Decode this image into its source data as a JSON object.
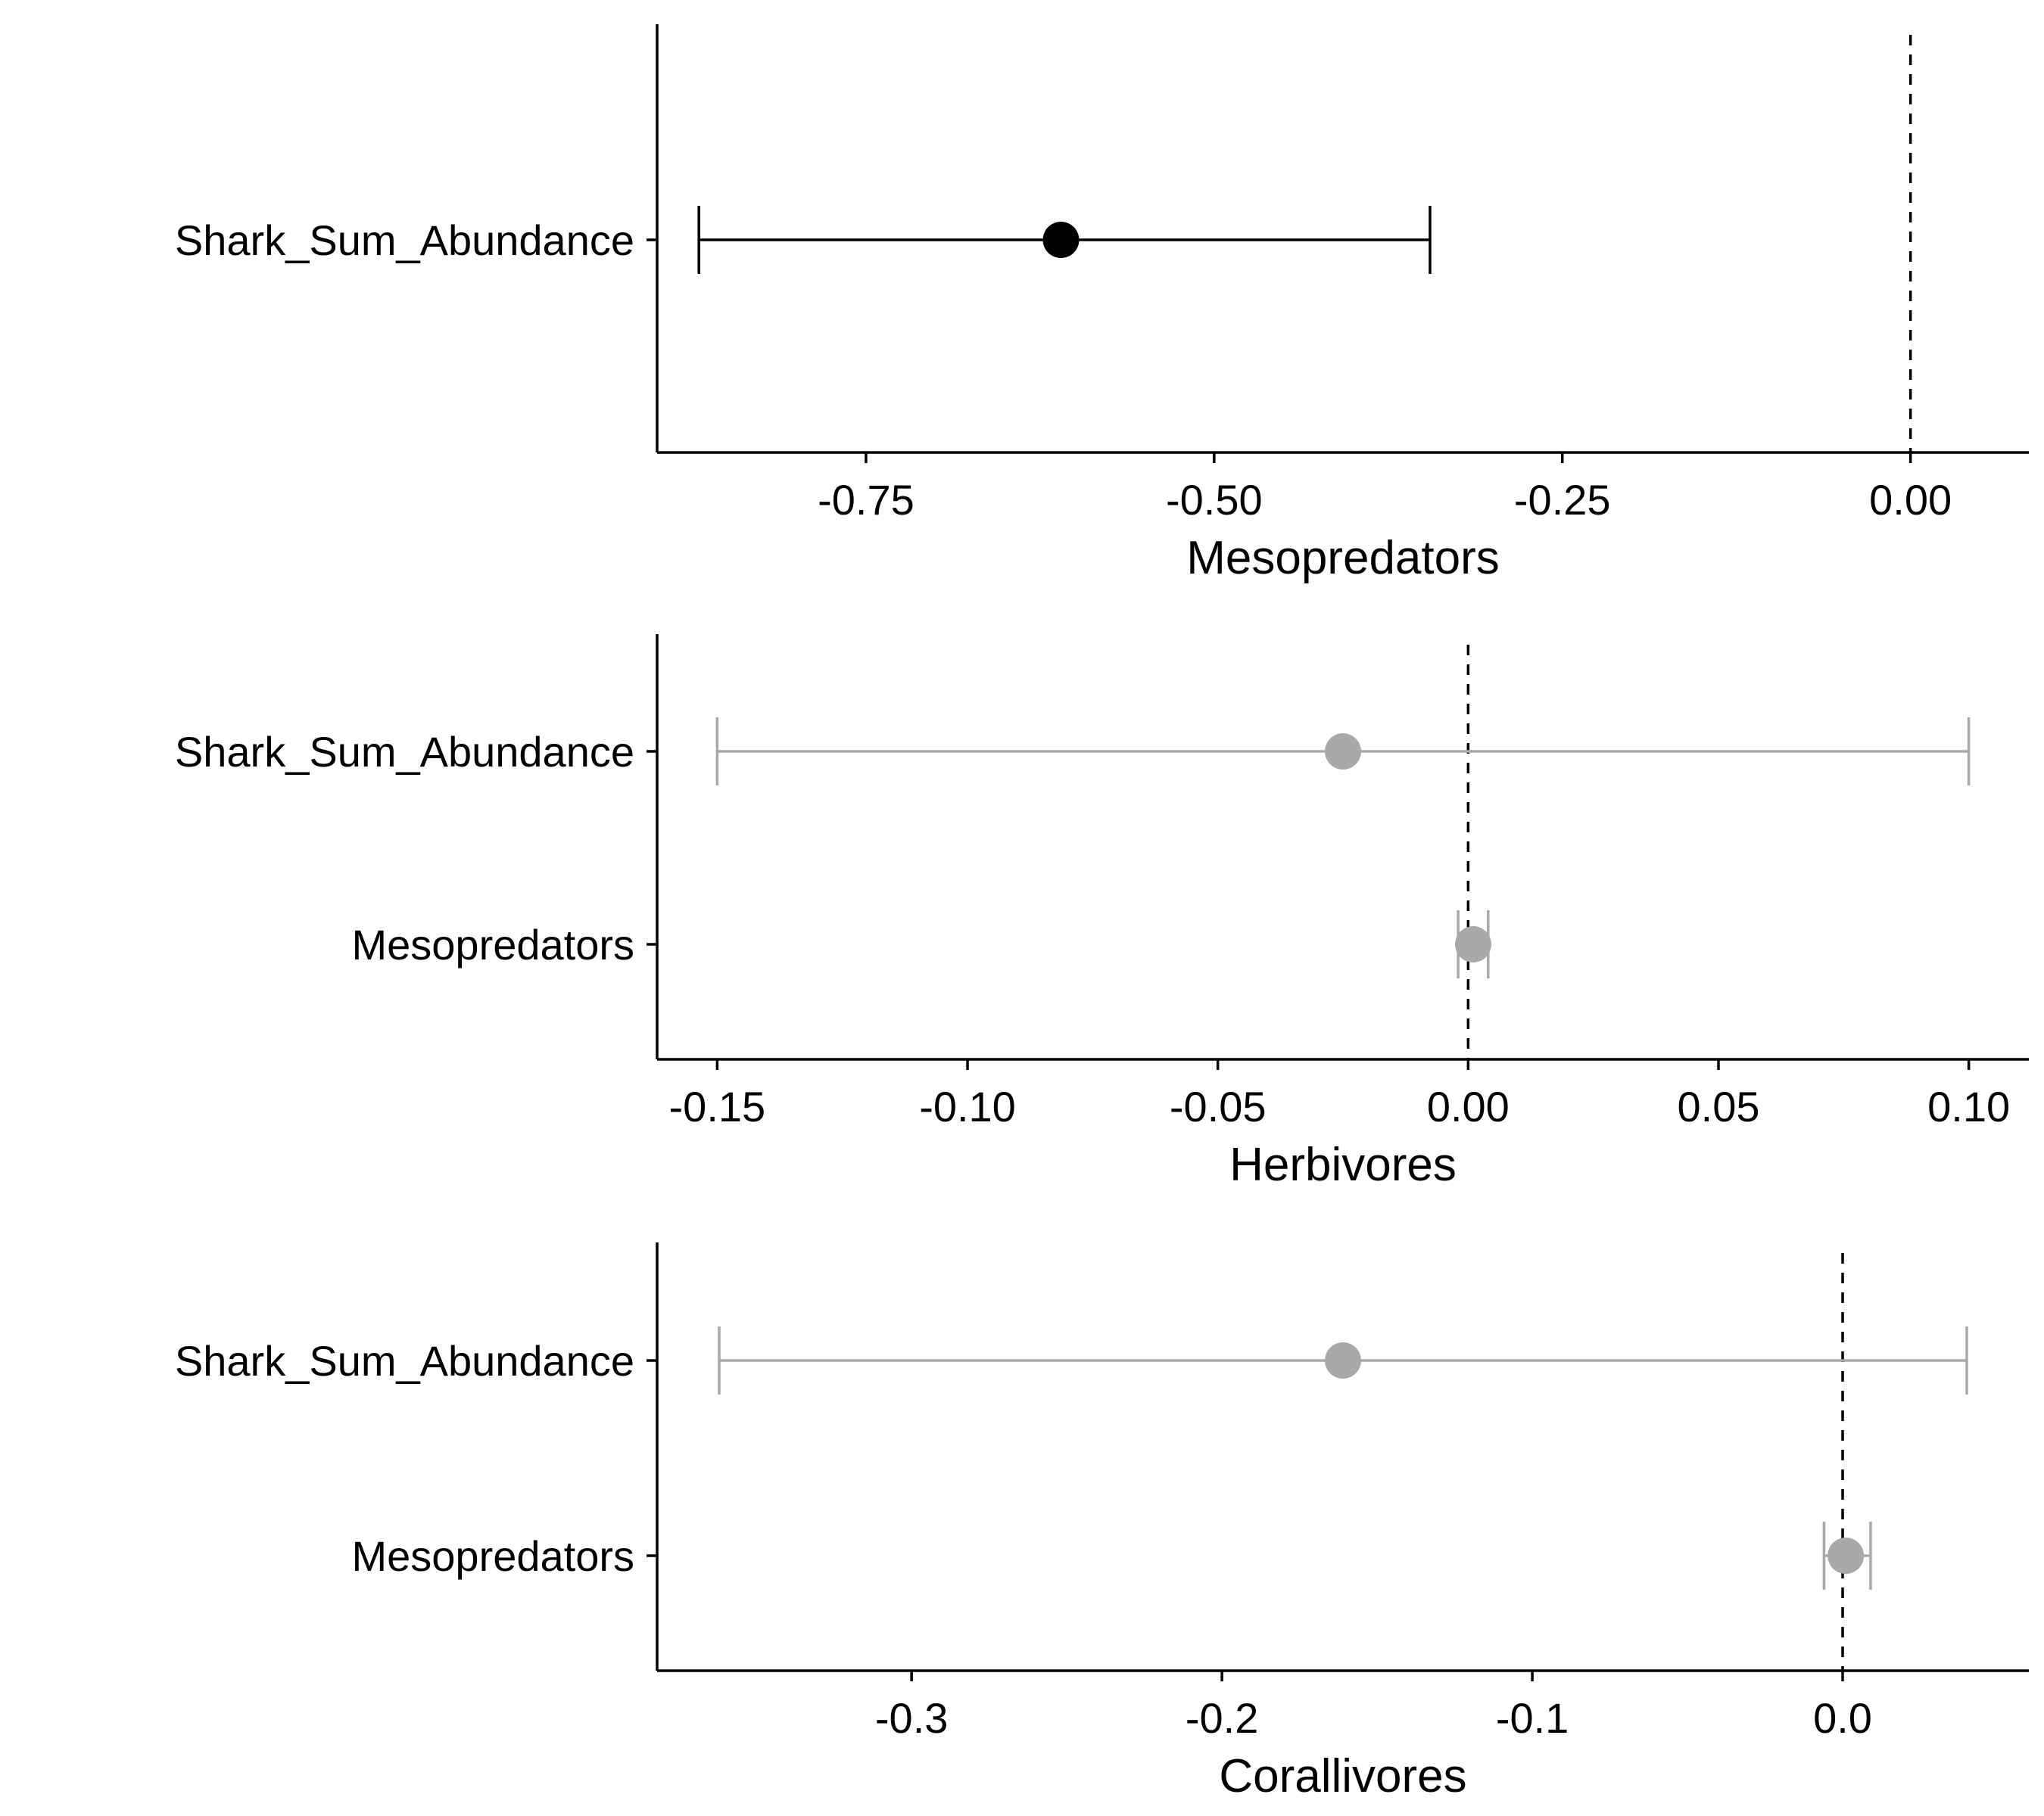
{
  "chart_data": [
    {
      "type": "forest",
      "xlabel": "Mesopredators",
      "xlim": [
        -0.9,
        0.085
      ],
      "xticks": [
        -0.75,
        -0.5,
        -0.25,
        0.0
      ],
      "xtick_labels": [
        "-0.75",
        "-0.50",
        "-0.25",
        "0.00"
      ],
      "reference_line": 0,
      "rows": [
        {
          "label": "Shark_Sum_Abundance",
          "estimate": -0.61,
          "lower": -0.87,
          "upper": -0.345,
          "significant": true
        }
      ]
    },
    {
      "type": "forest",
      "xlabel": "Herbivores",
      "xlim": [
        -0.162,
        0.112
      ],
      "xticks": [
        -0.15,
        -0.1,
        -0.05,
        0.0,
        0.05,
        0.1
      ],
      "xtick_labels": [
        "-0.15",
        "-0.10",
        "-0.05",
        "0.00",
        "0.05",
        "0.10"
      ],
      "reference_line": 0,
      "rows": [
        {
          "label": "Shark_Sum_Abundance",
          "estimate": -0.025,
          "lower": -0.15,
          "upper": 0.1,
          "significant": false
        },
        {
          "label": "Mesopredators",
          "estimate": 0.001,
          "lower": -0.002,
          "upper": 0.004,
          "significant": false
        }
      ]
    },
    {
      "type": "forest",
      "xlabel": "Corallivores",
      "xlim": [
        -0.382,
        0.06
      ],
      "xticks": [
        -0.3,
        -0.2,
        -0.1,
        0.0
      ],
      "xtick_labels": [
        "-0.3",
        "-0.2",
        "-0.1",
        "0.0"
      ],
      "reference_line": 0,
      "rows": [
        {
          "label": "Shark_Sum_Abundance",
          "estimate": -0.161,
          "lower": -0.362,
          "upper": 0.04,
          "significant": false
        },
        {
          "label": "Mesopredators",
          "estimate": 0.001,
          "lower": -0.006,
          "upper": 0.009,
          "significant": false
        }
      ]
    }
  ],
  "colors": {
    "significant": "#000000",
    "non_significant": "#a9a9a9",
    "axis": "#000000"
  }
}
